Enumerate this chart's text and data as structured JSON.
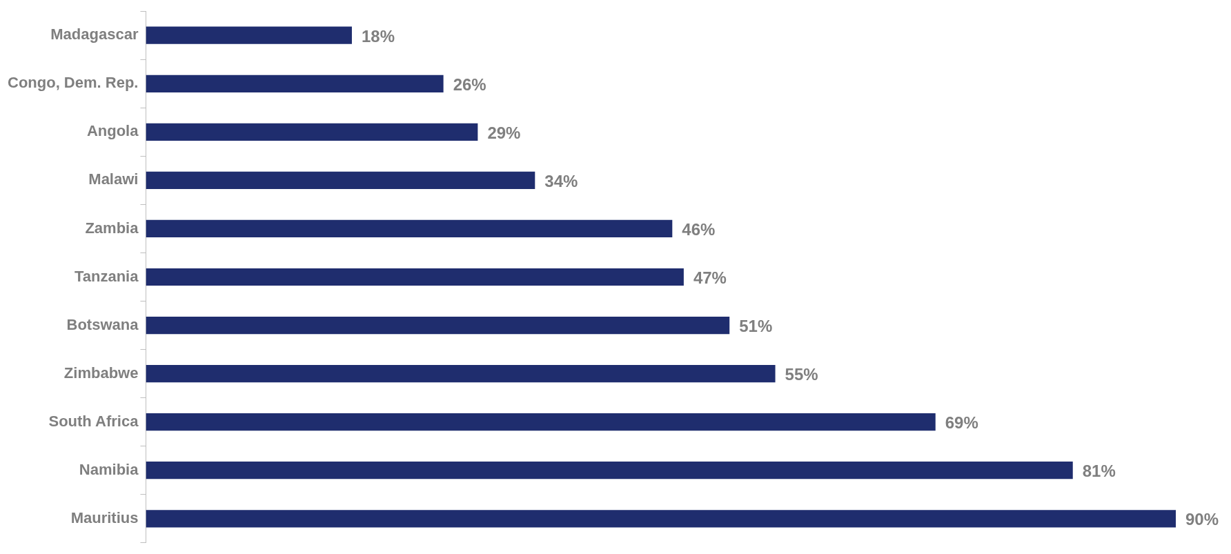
{
  "chart_data": {
    "type": "bar",
    "orientation": "horizontal",
    "categories": [
      "Madagascar",
      "Congo, Dem. Rep.",
      "Angola",
      "Malawi",
      "Zambia",
      "Tanzania",
      "Botswana",
      "Zimbabwe",
      "South Africa",
      "Namibia",
      "Mauritius"
    ],
    "values": [
      18,
      26,
      29,
      34,
      46,
      47,
      51,
      55,
      69,
      81,
      90
    ],
    "value_labels": [
      "18%",
      "26%",
      "29%",
      "34%",
      "46%",
      "47%",
      "51%",
      "55%",
      "69%",
      "81%",
      "90%"
    ],
    "color": "#1f2d6e",
    "tick_labels": "y",
    "legend": false
  }
}
